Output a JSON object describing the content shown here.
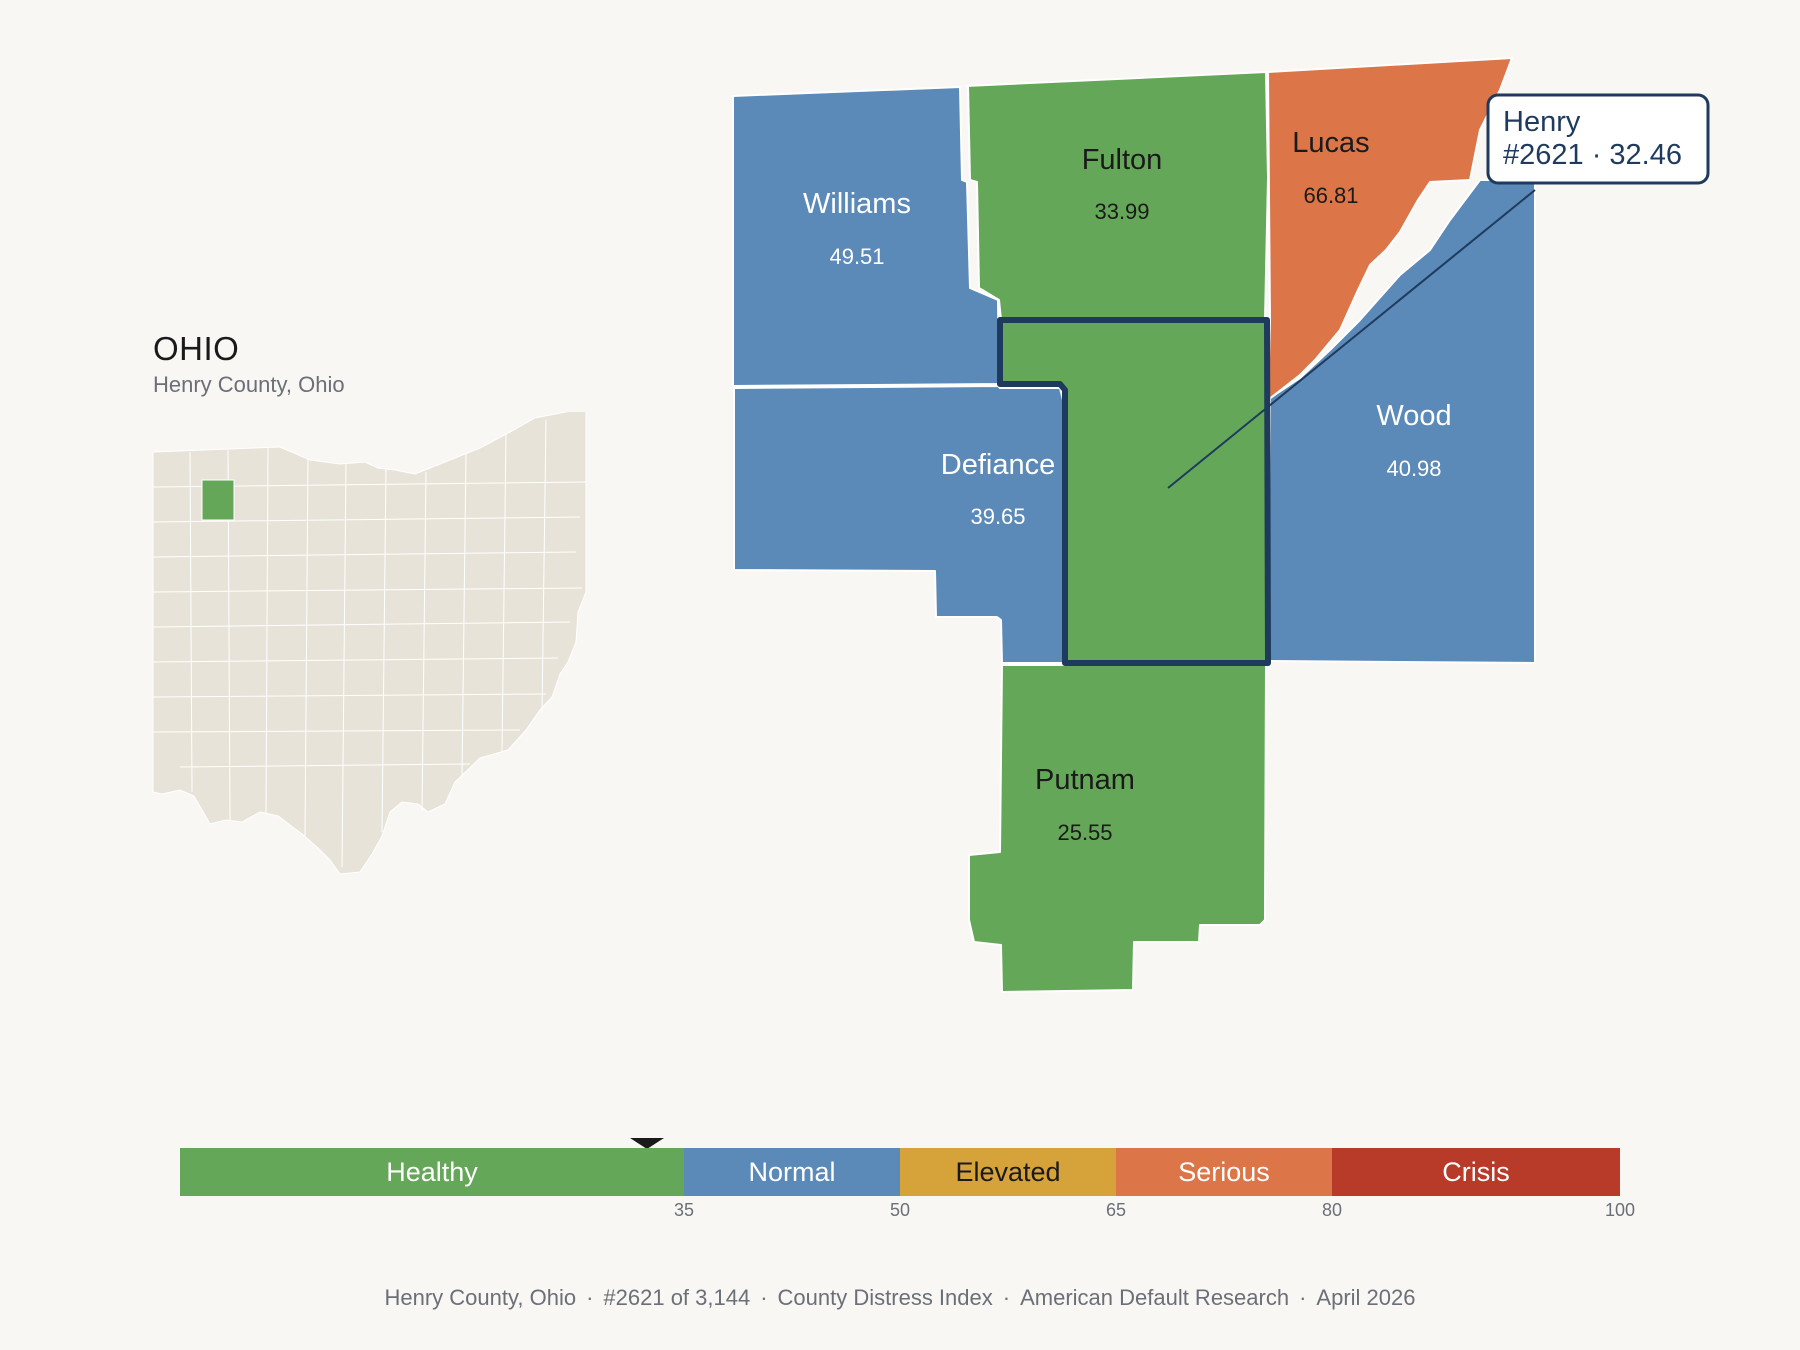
{
  "state": {
    "title": "OHIO",
    "subtitle": "Henry County, Ohio",
    "highlight_color": "#65a758",
    "base_color": "#e8e3d9"
  },
  "counties": [
    {
      "name": "Williams",
      "value": "49.51",
      "fill": "#5b89b8",
      "text": "#ffffff"
    },
    {
      "name": "Fulton",
      "value": "33.99",
      "fill": "#65a758",
      "text": "#1a1a1a"
    },
    {
      "name": "Lucas",
      "value": "66.81",
      "fill": "#dc7649",
      "text": "#1a1a1a"
    },
    {
      "name": "Defiance",
      "value": "39.65",
      "fill": "#5b89b8",
      "text": "#ffffff"
    },
    {
      "name": "Wood",
      "value": "40.98",
      "fill": "#5b89b8",
      "text": "#ffffff"
    },
    {
      "name": "Putnam",
      "value": "25.55",
      "fill": "#65a758",
      "text": "#1a1a1a"
    },
    {
      "name": "Henry",
      "value": "32.46",
      "fill": "#65a758",
      "selected": true
    }
  ],
  "tooltip": {
    "line1": "Henry",
    "line2": "#2621 · 32.46",
    "border": "#1e3a5c"
  },
  "scale": {
    "current_value": 32.46,
    "segments": [
      {
        "label": "Healthy",
        "from": 0,
        "to": 35,
        "color": "#65a758",
        "text": "#ffffff"
      },
      {
        "label": "Normal",
        "from": 35,
        "to": 50,
        "color": "#5b89b8",
        "text": "#ffffff"
      },
      {
        "label": "Elevated",
        "from": 50,
        "to": 65,
        "color": "#d6a23a",
        "text": "#1a1a1a"
      },
      {
        "label": "Serious",
        "from": 65,
        "to": 80,
        "color": "#dc7649",
        "text": "#ffffff"
      },
      {
        "label": "Crisis",
        "from": 80,
        "to": 100,
        "color": "#b83b2a",
        "text": "#ffffff"
      }
    ],
    "ticks": [
      "35",
      "50",
      "65",
      "80",
      "100"
    ]
  },
  "footer": {
    "items": [
      "Henry County, Ohio",
      "#2621 of 3,144",
      "County Distress Index",
      "American Default Research",
      "April 2026"
    ],
    "separator": "·"
  }
}
